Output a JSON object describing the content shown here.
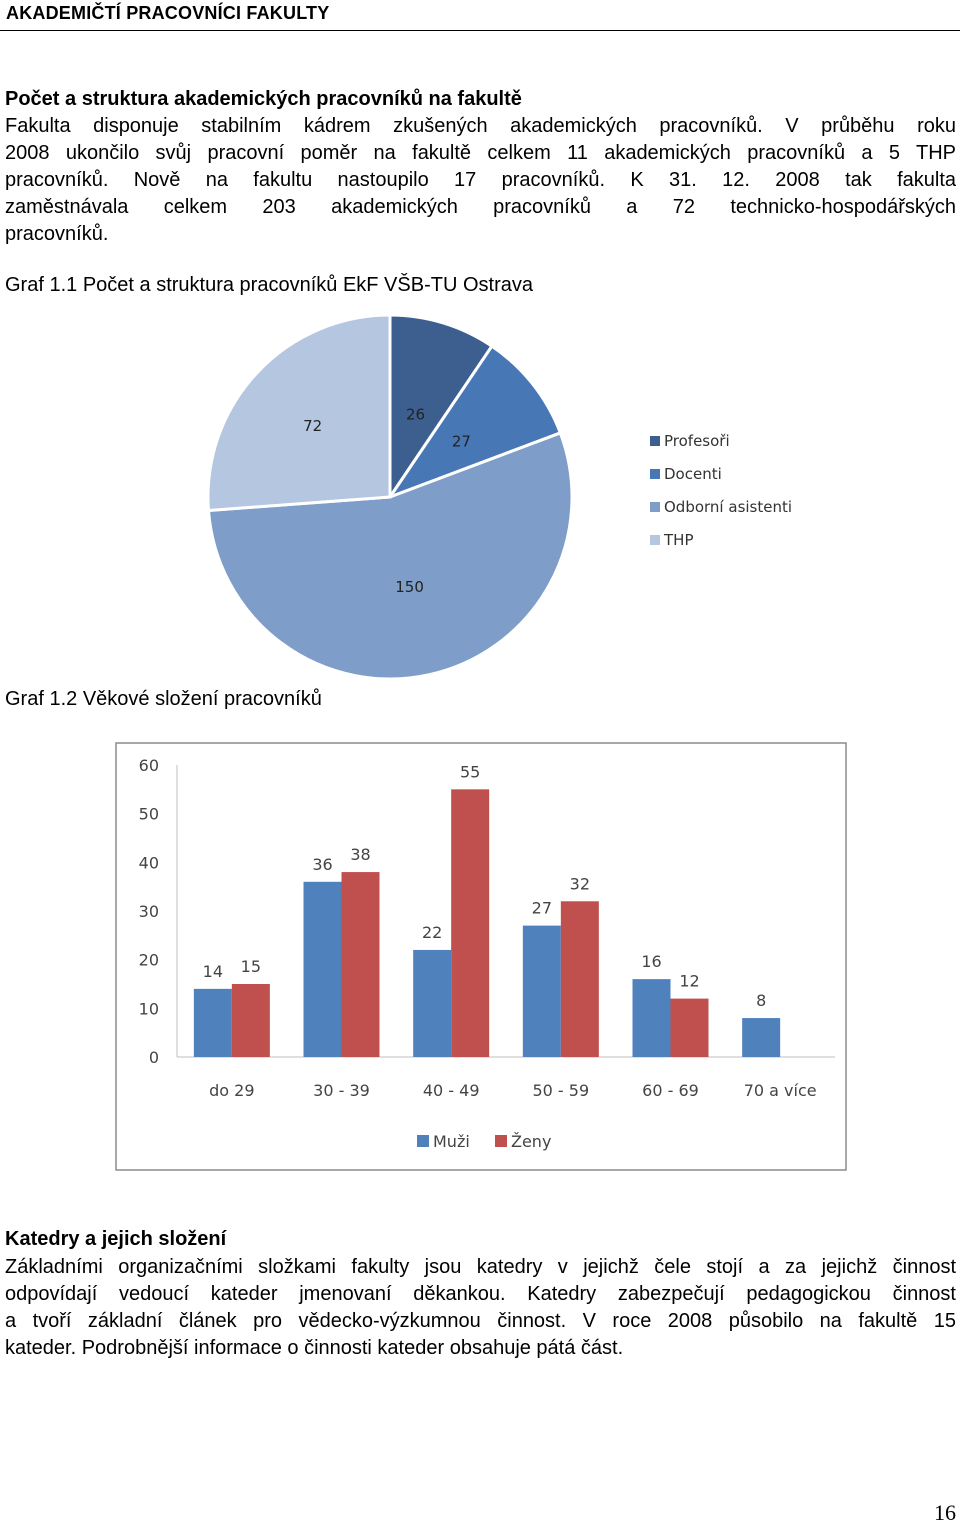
{
  "header": {
    "title": "AKADEMIČTÍ PRACOVNÍCI FAKULTY"
  },
  "section1": {
    "heading": "Počet a struktura akademických pracovníků na fakultě",
    "lines": [
      "Fakulta disponuje stabilním kádrem zkušených akademických pracovníků. V průběhu roku",
      "2008 ukončilo svůj pracovní poměr na fakultě celkem 11 akademických pracovníků a 5 THP",
      "pracovníků. Nově na fakultu nastoupilo 17 pracovníků. K 31. 12. 2008 tak fakulta",
      "zaměstnávala celkem 203 akademických pracovníků a 72 technicko-hospodářských",
      "pracovníků."
    ]
  },
  "graph1": {
    "caption": "Graf 1.1 Počet a struktura pracovníků EkF VŠB-TU Ostrava"
  },
  "graph2": {
    "caption": "Graf 1.2 Věkové složení pracovníků"
  },
  "section2": {
    "heading": "Katedry a jejich složení",
    "lines": [
      "Základními organizačními složkami fakulty jsou katedry v jejichž čele stojí a za jejichž činnost",
      "odpovídají vedoucí kateder jmenovaní děkankou. Katedry zabezpečují pedagogickou činnost",
      "a tvoří základní článek pro vědecko-výzkumnou činnost. V roce 2008 působilo na fakultě 15",
      "kateder. Podrobnější informace o činnosti kateder obsahuje pátá část."
    ]
  },
  "page_number": "16",
  "chart_data": [
    {
      "type": "pie",
      "title": "",
      "categories": [
        "Profesoři",
        "Docenti",
        "Odborní asistenti",
        "THP"
      ],
      "values": [
        26,
        27,
        150,
        72
      ],
      "colors": [
        "#3d5f8f",
        "#4877b5",
        "#7e9dc8",
        "#b5c6e0"
      ],
      "legend": "right"
    },
    {
      "type": "bar",
      "title": "",
      "categories": [
        "do 29",
        "30 - 39",
        "40 - 49",
        "50 - 59",
        "60 - 69",
        "70 a více"
      ],
      "series": [
        {
          "name": "Muži",
          "values": [
            14,
            36,
            22,
            27,
            16,
            8
          ],
          "color": "#4f81bd"
        },
        {
          "name": "Ženy",
          "values": [
            15,
            38,
            55,
            32,
            12,
            null
          ],
          "color": "#c0504d"
        }
      ],
      "ylim": [
        0,
        60
      ],
      "yticks": [
        0,
        10,
        20,
        30,
        40,
        50,
        60
      ],
      "grid": false,
      "legend": "bottom"
    }
  ]
}
